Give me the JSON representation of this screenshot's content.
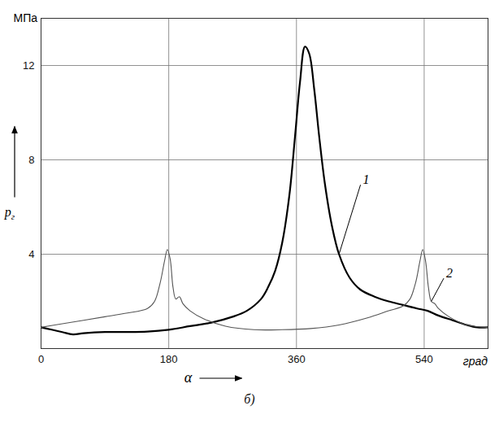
{
  "chart_data": {
    "type": "line",
    "ylabel": "МПа",
    "y_symbol": "p",
    "y_symbol_subscript": "г",
    "xlabel": "α",
    "x_unit": "град",
    "caption": "б)",
    "xlim": [
      0,
      630
    ],
    "xticks": [
      0,
      180,
      360,
      540
    ],
    "ylim": [
      0,
      14
    ],
    "yticks": [
      4,
      8,
      12
    ],
    "grid": true,
    "series": [
      {
        "name": "1",
        "color": "#000000",
        "line_style": "thick",
        "x": [
          0,
          15,
          30,
          45,
          60,
          90,
          120,
          150,
          180,
          210,
          240,
          270,
          290,
          310,
          320,
          330,
          340,
          350,
          358,
          365,
          372,
          378,
          385,
          392,
          400,
          410,
          420,
          435,
          450,
          470,
          490,
          510,
          530,
          545,
          560,
          580,
          600,
          615,
          630
        ],
        "values": [
          0.9,
          0.8,
          0.7,
          0.6,
          0.65,
          0.7,
          0.7,
          0.72,
          0.8,
          0.95,
          1.1,
          1.35,
          1.6,
          2.1,
          2.6,
          3.3,
          4.5,
          6.5,
          9.0,
          11.3,
          12.8,
          12.5,
          11.0,
          9.0,
          7.0,
          5.2,
          4.0,
          3.0,
          2.5,
          2.2,
          2.0,
          1.85,
          1.7,
          1.6,
          1.4,
          1.2,
          1.0,
          0.9,
          0.9
        ]
      },
      {
        "name": "2",
        "color": "#555555",
        "line_style": "thin",
        "x": [
          0,
          30,
          60,
          90,
          120,
          150,
          160,
          168,
          174,
          178,
          182,
          186,
          190,
          195,
          200,
          210,
          230,
          260,
          300,
          340,
          380,
          420,
          460,
          490,
          510,
          520,
          528,
          534,
          538,
          542,
          546,
          550,
          555,
          560,
          575,
          600,
          630
        ],
        "values": [
          0.9,
          1.05,
          1.2,
          1.35,
          1.5,
          1.7,
          2.0,
          2.8,
          3.7,
          4.2,
          3.8,
          2.6,
          2.1,
          2.2,
          1.9,
          1.6,
          1.25,
          0.95,
          0.8,
          0.8,
          0.85,
          1.0,
          1.3,
          1.6,
          1.8,
          2.1,
          2.8,
          3.7,
          4.2,
          3.7,
          2.6,
          2.0,
          1.9,
          1.7,
          1.35,
          1.0,
          0.9
        ]
      }
    ]
  }
}
